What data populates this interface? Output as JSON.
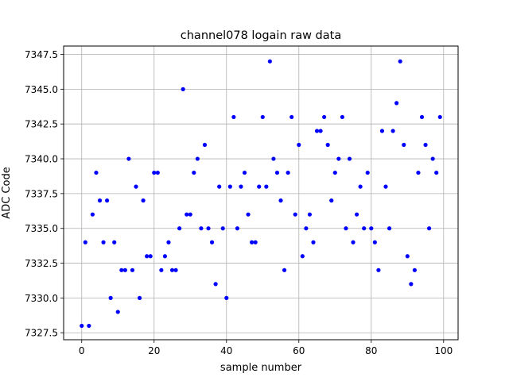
{
  "chart_data": {
    "type": "scatter",
    "title": "channel078 logain raw data",
    "xlabel": "sample number",
    "ylabel": "ADC Code",
    "xlim": [
      -5,
      104
    ],
    "ylim": [
      7327.0,
      7348.1
    ],
    "xticks": [
      0,
      20,
      40,
      60,
      80,
      100
    ],
    "xtick_labels": [
      "0",
      "20",
      "40",
      "60",
      "80",
      "100"
    ],
    "yticks": [
      7327.5,
      7330.0,
      7332.5,
      7335.0,
      7337.5,
      7340.0,
      7342.5,
      7345.0,
      7347.5
    ],
    "ytick_labels": [
      "7327.5",
      "7330.0",
      "7332.5",
      "7335.0",
      "7337.5",
      "7340.0",
      "7342.5",
      "7345.0",
      "7347.5"
    ],
    "grid": true,
    "marker_color": "#0000ff",
    "series": [
      {
        "x": [
          0,
          1,
          2,
          3,
          4,
          5,
          6,
          7,
          8,
          9,
          10,
          11,
          12,
          13,
          14,
          15,
          16,
          17,
          18,
          19,
          20,
          21,
          22,
          23,
          24,
          25,
          26,
          27,
          28,
          29,
          30,
          31,
          32,
          33,
          34,
          35,
          36,
          37,
          38,
          39,
          40,
          41,
          42,
          43,
          44,
          45,
          46,
          47,
          48,
          49,
          50,
          51,
          52,
          53,
          54,
          55,
          56,
          57,
          58,
          59,
          60,
          61,
          62,
          63,
          64,
          65,
          66,
          67,
          68,
          69,
          70,
          71,
          72,
          73,
          74,
          75,
          76,
          77,
          78,
          79,
          80,
          81,
          82,
          83,
          84,
          85,
          86,
          87,
          88,
          89,
          90,
          91,
          92,
          93,
          94,
          95,
          96,
          97,
          98,
          99
        ],
        "y": [
          7328,
          7334,
          7328,
          7336,
          7339,
          7337,
          7334,
          7337,
          7330,
          7334,
          7329,
          7332,
          7332,
          7340,
          7332,
          7338,
          7330,
          7337,
          7333,
          7333,
          7339,
          7339,
          7332,
          7333,
          7334,
          7332,
          7332,
          7335,
          7345,
          7336,
          7336,
          7339,
          7340,
          7335,
          7341,
          7335,
          7334,
          7331,
          7338,
          7335,
          7330,
          7338,
          7343,
          7335,
          7338,
          7339,
          7336,
          7334,
          7334,
          7338,
          7343,
          7338,
          7347,
          7340,
          7339,
          7337,
          7332,
          7339,
          7343,
          7336,
          7341,
          7333,
          7335,
          7336,
          7334,
          7342,
          7342,
          7343,
          7341,
          7337,
          7339,
          7340,
          7343,
          7335,
          7340,
          7334,
          7336,
          7338,
          7335,
          7339,
          7335,
          7334,
          7332,
          7342,
          7338,
          7335,
          7342,
          7344,
          7347,
          7341,
          7333,
          7331,
          7332,
          7339,
          7343,
          7341,
          7335,
          7340,
          7339,
          7343
        ]
      }
    ]
  }
}
